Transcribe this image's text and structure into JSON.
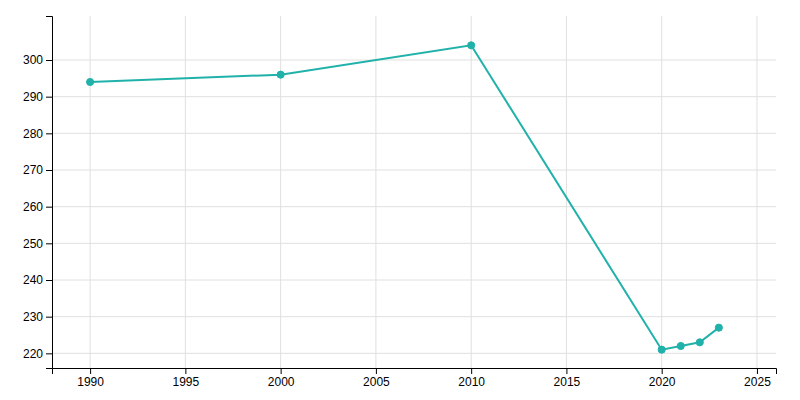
{
  "chart_data": {
    "type": "line",
    "x": [
      1990,
      2000,
      2010,
      2020,
      2021,
      2022,
      2023
    ],
    "values": [
      294,
      296,
      304,
      221,
      222,
      223,
      227
    ],
    "color": "#20B2AA",
    "marker": "circle",
    "xlim": [
      1988,
      2026
    ],
    "ylim": [
      216,
      312
    ],
    "xticks": [
      1990,
      1995,
      2000,
      2005,
      2010,
      2015,
      2020,
      2025
    ],
    "yticks": [
      220,
      230,
      240,
      250,
      260,
      270,
      280,
      290,
      300
    ],
    "grid": true
  }
}
